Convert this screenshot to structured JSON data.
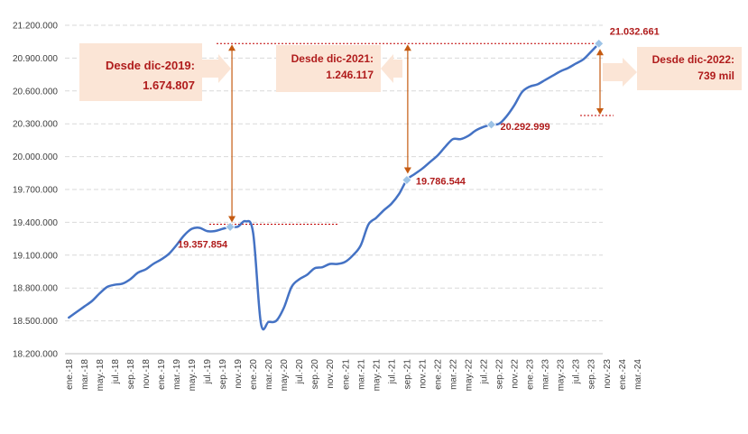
{
  "chart_data": {
    "type": "line",
    "ylim": [
      18200000,
      21200000
    ],
    "yticks": [
      18200000,
      18500000,
      18800000,
      19100000,
      19400000,
      19700000,
      20000000,
      20300000,
      20600000,
      20900000,
      21200000
    ],
    "ytick_labels": [
      "18.200.000",
      "18.500.000",
      "18.800.000",
      "19.100.000",
      "19.400.000",
      "19.700.000",
      "20.000.000",
      "20.300.000",
      "20.600.000",
      "20.900.000",
      "21.200.000"
    ],
    "xtick_labels": [
      "ene.-18",
      "mar.-18",
      "may.-18",
      "jul.-18",
      "sep.-18",
      "nov.-18",
      "ene.-19",
      "mar.-19",
      "may.-19",
      "jul.-19",
      "sep.-19",
      "nov.-19",
      "ene.-20",
      "mar.-20",
      "may.-20",
      "jul.-20",
      "sep.-20",
      "nov.-20",
      "ene.-21",
      "mar.-21",
      "may.-21",
      "jul.-21",
      "sep.-21",
      "nov.-21",
      "ene.-22",
      "mar.-22",
      "may.-22",
      "jul.-22",
      "sep.-22",
      "nov.-22",
      "ene.-23",
      "mar.-23",
      "may.-23",
      "jul.-23",
      "sep.-23",
      "nov.-23",
      "ene.-24",
      "mar.-24"
    ],
    "series": [
      {
        "color": "#4472c4",
        "values": [
          18530000,
          18580000,
          18630000,
          18680000,
          18750000,
          18810000,
          18830000,
          18840000,
          18880000,
          18940000,
          18970000,
          19020000,
          19060000,
          19110000,
          19190000,
          19280000,
          19340000,
          19350000,
          19320000,
          19320000,
          19340000,
          19357854,
          19360000,
          19410000,
          19300000,
          18480000,
          18490000,
          18500000,
          18620000,
          18810000,
          18880000,
          18920000,
          18980000,
          18990000,
          19020000,
          19020000,
          19040000,
          19100000,
          19190000,
          19380000,
          19440000,
          19510000,
          19570000,
          19660000,
          19786544,
          19840000,
          19890000,
          19950000,
          20010000,
          20090000,
          20160000,
          20160000,
          20190000,
          20240000,
          20272000,
          20292999,
          20300000,
          20370000,
          20470000,
          20590000,
          20640000,
          20660000,
          20700000,
          20740000,
          20780000,
          20810000,
          20850000,
          20890000,
          20960000,
          21032661
        ]
      }
    ],
    "highlights": [
      {
        "index": 21,
        "label": "19.357.854"
      },
      {
        "index": 44,
        "label": "19.786.544"
      },
      {
        "index": 55,
        "label": "20.292.999"
      },
      {
        "index": 69,
        "label": "21.032.661"
      }
    ],
    "callouts": [
      {
        "title": "Desde dic-2019:",
        "value": "1.674.807"
      },
      {
        "title": "Desde dic-2021:",
        "value": "1.246.117"
      },
      {
        "title": "Desde dic-2022:",
        "value": "739 mil"
      }
    ],
    "colors": {
      "line": "#4472c4",
      "marker": "#9dc3e6",
      "annotation": "#b01c1c",
      "callout_fill": "#fbe5d6",
      "arrow": "#c55a11",
      "grid": "#d9d9d9"
    },
    "grid": true
  }
}
